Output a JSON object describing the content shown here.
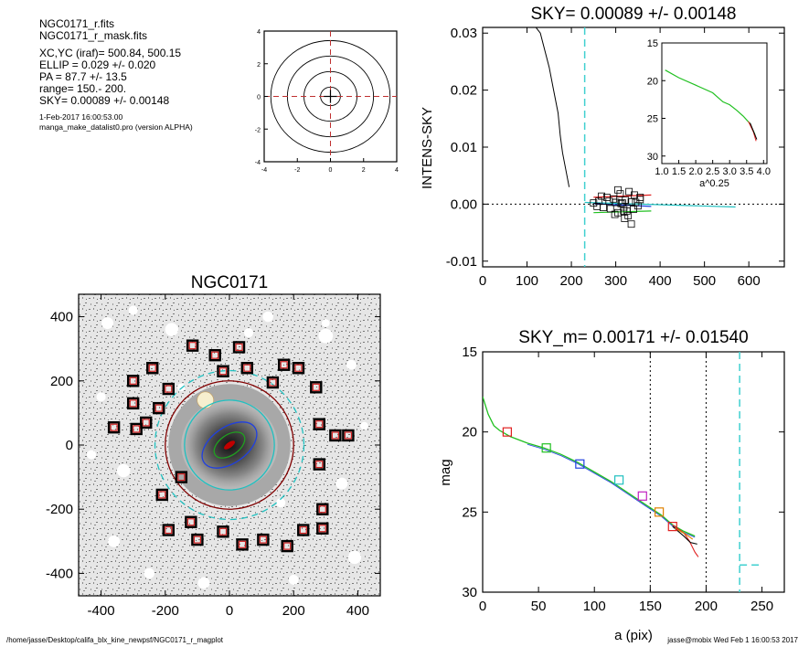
{
  "info": {
    "files": [
      "NGC0171_r.fits",
      "NGC0171_r_mask.fits"
    ],
    "params": [
      "XC,YC (iraf)=   500.84, 500.15",
      "ELLIP = 0.029 +/- 0.020",
      "PA    =  87.7 +/-  13.5",
      "range=  150.-  200.",
      "SKY= 0.00089 +/- 0.00148"
    ],
    "date": " 1-Feb-2017 16:00:53.00",
    "program": "manga_make_datalist0.pro (version ALPHA)"
  },
  "footer": {
    "path": "/home/jasse/Desktop/califa_blx_kine_newpsf/NGC0171_r_magplot",
    "stamp": "jasse@mobix  Wed Feb  1 16:00:53 2017"
  },
  "chart_data": [
    {
      "id": "center-contour",
      "type": "contour",
      "xlim": [
        -4,
        4
      ],
      "ylim": [
        -4,
        4
      ],
      "xticks": [
        "-4",
        "-2",
        "0",
        "2",
        "4"
      ],
      "yticks": [
        "-4",
        "-2",
        "0",
        "2",
        "4"
      ],
      "center": [
        0,
        0
      ],
      "contour_radii": [
        0.6,
        1.6,
        2.6,
        3.6
      ]
    },
    {
      "id": "sky-profile",
      "type": "scatter",
      "title": "SKY= 0.00089 +/- 0.00148",
      "ylabel": "INTENS-SKY",
      "xlim": [
        0,
        680
      ],
      "ylim": [
        -0.011,
        0.031
      ],
      "xticks": [
        "0",
        "100",
        "200",
        "300",
        "400",
        "500",
        "600"
      ],
      "yticks": [
        "0.03",
        "0.02",
        "0.01",
        "0.00",
        "-0.01"
      ],
      "vline": 230,
      "profile": {
        "x": [
          100,
          130,
          150,
          160,
          170,
          175,
          180,
          185,
          190,
          195
        ],
        "y": [
          0.033,
          0.03,
          0.024,
          0.02,
          0.016,
          0.012,
          0.009,
          0.007,
          0.005,
          0.003
        ]
      },
      "squares": {
        "x": [
          250,
          262,
          272,
          280,
          288,
          295,
          300,
          305,
          310,
          315,
          318,
          322,
          325,
          330,
          335,
          340,
          345,
          350,
          355,
          258,
          268,
          285,
          298,
          312,
          328,
          342,
          355,
          305,
          320,
          335,
          300,
          318
        ],
        "y": [
          0.0002,
          0.0005,
          -0.0006,
          0.0012,
          -0.0008,
          0.0009,
          0.0003,
          -0.0015,
          0.0018,
          0.0002,
          -0.0005,
          0.0007,
          -0.0012,
          0.0022,
          0.0004,
          -0.0009,
          0.0003,
          -0.0003,
          0.0012,
          -0.0004,
          0.0014,
          0.0005,
          -0.0018,
          0.0001,
          -0.002,
          0.0016,
          0.0008,
          0.0025,
          -0.0025,
          -0.0035,
          0.0003,
          -0.0012
        ]
      },
      "series": [
        {
          "color": "#e02020",
          "x": [
            250,
            380
          ],
          "y": [
            0.0012,
            0.0016
          ]
        },
        {
          "color": "#20c020",
          "x": [
            250,
            380
          ],
          "y": [
            -0.0015,
            -0.0012
          ]
        },
        {
          "color": "#20c0c0",
          "x": [
            230,
            570
          ],
          "y": [
            0.0003,
            -0.0005
          ]
        },
        {
          "color": "#2040e0",
          "x": [
            250,
            380
          ],
          "y": [
            0.0001,
            -0.0004
          ]
        }
      ],
      "inset": {
        "xlabel": "a^0.25",
        "xlim": [
          1.0,
          4.1
        ],
        "ylim": [
          15,
          31
        ],
        "xticks": [
          "1.0",
          "1.5",
          "2.0",
          "2.5",
          "3.0",
          "3.5",
          "4.0"
        ],
        "yticks": [
          "15",
          "20",
          "25",
          "30"
        ],
        "curve": {
          "x": [
            1.1,
            1.5,
            2.0,
            2.5,
            2.8,
            3.0,
            3.2,
            3.4,
            3.6,
            3.75
          ],
          "y": [
            18.6,
            19.6,
            20.6,
            21.6,
            22.8,
            23.2,
            23.9,
            24.7,
            25.7,
            27.2
          ]
        }
      }
    },
    {
      "id": "image-panel",
      "type": "image",
      "title": "NGC0171",
      "xlim": [
        -470,
        470
      ],
      "ylim": [
        -470,
        470
      ],
      "xticks": [
        "-400",
        "-200",
        "0",
        "200",
        "400"
      ],
      "yticks": [
        "400",
        "200",
        "0",
        "-200",
        "-400"
      ],
      "ellipse_radii": [
        {
          "r": 232,
          "color": "#20c0c0",
          "dash": true
        },
        {
          "r": 200,
          "color": "#800000"
        },
        {
          "r": 140,
          "color": "#20c0c0"
        },
        {
          "r": 80,
          "color": "#2040e0"
        },
        {
          "r": 45,
          "color": "#20a020"
        }
      ],
      "sky_boxes": {
        "x": [
          -115,
          -45,
          30,
          -240,
          -300,
          -190,
          -20,
          55,
          135,
          170,
          215,
          270,
          -300,
          -360,
          -220,
          -260,
          -290,
          -210,
          280,
          330,
          370,
          280,
          290,
          -150,
          -190,
          -120,
          -100,
          -20,
          40,
          105,
          180,
          230,
          290
        ],
        "y": [
          310,
          280,
          305,
          240,
          200,
          175,
          230,
          240,
          195,
          250,
          240,
          180,
          130,
          55,
          115,
          70,
          50,
          -155,
          65,
          30,
          30,
          -60,
          -200,
          -100,
          -265,
          -240,
          -295,
          -270,
          -310,
          -295,
          -315,
          -265,
          -260
        ]
      }
    },
    {
      "id": "mag-profile",
      "type": "line",
      "title": "SKY_m=  0.00171 +/- 0.01540",
      "xlabel": "a (pix)",
      "ylabel": "mag",
      "xlim": [
        0,
        270
      ],
      "ylim": [
        15,
        30
      ],
      "xticks": [
        "0",
        "50",
        "100",
        "150",
        "200",
        "250"
      ],
      "yticks": [
        "15",
        "20",
        "25",
        "30"
      ],
      "vlines_dotted": [
        150,
        200
      ],
      "vline_dashed": 230,
      "hline_dashed": {
        "x": [
          230,
          250
        ],
        "y": 28.3
      },
      "main_curve": {
        "x": [
          0,
          5,
          10,
          15,
          20,
          25,
          40,
          55,
          70,
          85,
          100,
          115,
          130,
          145,
          160,
          170,
          180,
          190
        ],
        "y": [
          17.8,
          18.9,
          19.6,
          19.9,
          20.1,
          20.3,
          20.7,
          21.0,
          21.4,
          21.9,
          22.5,
          23.1,
          23.8,
          24.5,
          25.2,
          25.8,
          26.2,
          26.5
        ]
      },
      "tail_curves": [
        {
          "color": "#e02020",
          "x": [
            170,
            180,
            185,
            190,
            193
          ],
          "y": [
            25.8,
            26.3,
            26.8,
            27.5,
            27.8
          ]
        },
        {
          "color": "#000000",
          "x": [
            170,
            180,
            186,
            192
          ],
          "y": [
            25.9,
            26.5,
            26.9,
            27.0
          ]
        },
        {
          "color": "#e08000",
          "x": [
            172,
            182,
            188
          ],
          "y": [
            26.0,
            26.4,
            26.7
          ]
        }
      ],
      "markers": [
        {
          "x": 22,
          "y": 20.0,
          "color": "#e02020"
        },
        {
          "x": 57,
          "y": 21.0,
          "color": "#20c020"
        },
        {
          "x": 87,
          "y": 22.0,
          "color": "#2040e0"
        },
        {
          "x": 122,
          "y": 23.0,
          "color": "#20c0c0"
        },
        {
          "x": 143,
          "y": 24.0,
          "color": "#c020c0"
        },
        {
          "x": 158,
          "y": 25.0,
          "color": "#e08000"
        },
        {
          "x": 170,
          "y": 25.9,
          "color": "#e02020"
        }
      ]
    }
  ]
}
